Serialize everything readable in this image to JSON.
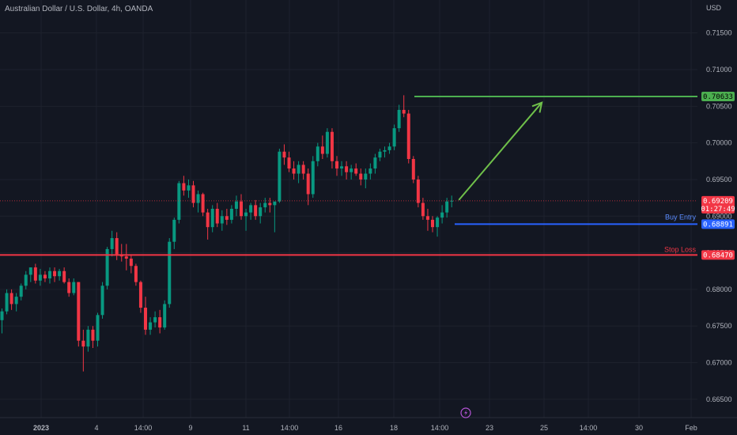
{
  "chart_data": {
    "type": "candlestick",
    "title": "Australian Dollar / U.S. Dollar, 4h, OANDA",
    "currency_label": "USD",
    "ylim": [
      0.6625,
      0.7195
    ],
    "y_ticks": [
      "0.71500",
      "0.71000",
      "0.70500",
      "0.70000",
      "0.69500",
      "0.69000",
      "0.68500",
      "0.68000",
      "0.67500",
      "0.67000",
      "0.66500"
    ],
    "x_ticks": [
      "2023",
      "4",
      "14:00",
      "9",
      "11",
      "14:00",
      "16",
      "18",
      "14:00",
      "23",
      "25",
      "14:00",
      "30",
      "Feb"
    ],
    "grid": true,
    "colors": {
      "background": "#131722",
      "up": "#089981",
      "down": "#f23645",
      "grid": "#1e222d",
      "axis_text": "#b2b5be"
    },
    "candles": [
      [
        0.6758,
        0.6774,
        0.674,
        0.677
      ],
      [
        0.677,
        0.68,
        0.6766,
        0.6795
      ],
      [
        0.6795,
        0.68,
        0.6772,
        0.678
      ],
      [
        0.678,
        0.6795,
        0.677,
        0.679
      ],
      [
        0.679,
        0.6808,
        0.6785,
        0.6805
      ],
      [
        0.6805,
        0.6825,
        0.68,
        0.682
      ],
      [
        0.682,
        0.683,
        0.681,
        0.683
      ],
      [
        0.683,
        0.6835,
        0.6808,
        0.6812
      ],
      [
        0.6812,
        0.6828,
        0.6805,
        0.682
      ],
      [
        0.682,
        0.6825,
        0.681,
        0.6815
      ],
      [
        0.6815,
        0.683,
        0.6808,
        0.6825
      ],
      [
        0.6825,
        0.683,
        0.681,
        0.6818
      ],
      [
        0.6818,
        0.6828,
        0.6812,
        0.6825
      ],
      [
        0.6825,
        0.683,
        0.6808,
        0.681
      ],
      [
        0.681,
        0.6815,
        0.679,
        0.6795
      ],
      [
        0.6795,
        0.6815,
        0.6792,
        0.681
      ],
      [
        0.681,
        0.681,
        0.6722,
        0.673
      ],
      [
        0.673,
        0.6745,
        0.6688,
        0.6722
      ],
      [
        0.6722,
        0.675,
        0.6715,
        0.6745
      ],
      [
        0.6745,
        0.675,
        0.672,
        0.673
      ],
      [
        0.673,
        0.6768,
        0.6722,
        0.6765
      ],
      [
        0.6765,
        0.681,
        0.676,
        0.6805
      ],
      [
        0.6805,
        0.6858,
        0.68,
        0.6855
      ],
      [
        0.6855,
        0.688,
        0.6845,
        0.687
      ],
      [
        0.687,
        0.6878,
        0.684,
        0.6848
      ],
      [
        0.6848,
        0.6862,
        0.6838,
        0.6845
      ],
      [
        0.6845,
        0.6862,
        0.6826,
        0.6842
      ],
      [
        0.6842,
        0.6848,
        0.6822,
        0.6832
      ],
      [
        0.6832,
        0.6835,
        0.6805,
        0.681
      ],
      [
        0.681,
        0.6812,
        0.6768,
        0.6775
      ],
      [
        0.6775,
        0.679,
        0.6738,
        0.6745
      ],
      [
        0.6745,
        0.6762,
        0.6738,
        0.6755
      ],
      [
        0.6755,
        0.677,
        0.6748,
        0.6762
      ],
      [
        0.6762,
        0.6772,
        0.674,
        0.6748
      ],
      [
        0.6748,
        0.6785,
        0.6745,
        0.678
      ],
      [
        0.678,
        0.687,
        0.6775,
        0.6865
      ],
      [
        0.6865,
        0.6898,
        0.6855,
        0.6895
      ],
      [
        0.6895,
        0.6948,
        0.689,
        0.6945
      ],
      [
        0.6945,
        0.6955,
        0.6928,
        0.6935
      ],
      [
        0.6935,
        0.695,
        0.6925,
        0.6942
      ],
      [
        0.6942,
        0.6948,
        0.6912,
        0.6918
      ],
      [
        0.6918,
        0.6935,
        0.6905,
        0.693
      ],
      [
        0.693,
        0.6932,
        0.69,
        0.6905
      ],
      [
        0.6905,
        0.691,
        0.6868,
        0.6885
      ],
      [
        0.6885,
        0.6915,
        0.6878,
        0.691
      ],
      [
        0.691,
        0.6918,
        0.6885,
        0.689
      ],
      [
        0.689,
        0.6908,
        0.688,
        0.69
      ],
      [
        0.69,
        0.691,
        0.6888,
        0.6895
      ],
      [
        0.6895,
        0.6915,
        0.689,
        0.691
      ],
      [
        0.691,
        0.6928,
        0.69,
        0.692
      ],
      [
        0.692,
        0.693,
        0.6895,
        0.69
      ],
      [
        0.69,
        0.691,
        0.688,
        0.6905
      ],
      [
        0.6905,
        0.6918,
        0.6895,
        0.6915
      ],
      [
        0.6915,
        0.6922,
        0.6895,
        0.69
      ],
      [
        0.69,
        0.6918,
        0.689,
        0.6912
      ],
      [
        0.6912,
        0.6925,
        0.6905,
        0.6918
      ],
      [
        0.6918,
        0.6925,
        0.6905,
        0.6915
      ],
      [
        0.6915,
        0.6918,
        0.6878,
        0.692
      ],
      [
        0.692,
        0.6992,
        0.6918,
        0.6988
      ],
      [
        0.6988,
        0.6998,
        0.697,
        0.698
      ],
      [
        0.698,
        0.6988,
        0.696,
        0.6965
      ],
      [
        0.6965,
        0.6975,
        0.695,
        0.6958
      ],
      [
        0.6958,
        0.6975,
        0.6945,
        0.697
      ],
      [
        0.697,
        0.6975,
        0.695,
        0.6958
      ],
      [
        0.6958,
        0.6965,
        0.6915,
        0.693
      ],
      [
        0.693,
        0.6982,
        0.6925,
        0.6975
      ],
      [
        0.6975,
        0.7,
        0.6968,
        0.6995
      ],
      [
        0.6995,
        0.701,
        0.6978,
        0.6985
      ],
      [
        0.6985,
        0.702,
        0.698,
        0.7015
      ],
      [
        0.7015,
        0.702,
        0.6965,
        0.6975
      ],
      [
        0.6975,
        0.6982,
        0.6955,
        0.6965
      ],
      [
        0.6965,
        0.6975,
        0.6955,
        0.6968
      ],
      [
        0.6968,
        0.6975,
        0.695,
        0.696
      ],
      [
        0.696,
        0.697,
        0.695,
        0.6965
      ],
      [
        0.6965,
        0.6972,
        0.6955,
        0.6958
      ],
      [
        0.6958,
        0.6965,
        0.6942,
        0.695
      ],
      [
        0.695,
        0.6965,
        0.6938,
        0.6958
      ],
      [
        0.6958,
        0.6972,
        0.695,
        0.6965
      ],
      [
        0.6965,
        0.6985,
        0.6958,
        0.698
      ],
      [
        0.698,
        0.6992,
        0.6975,
        0.6988
      ],
      [
        0.6988,
        0.6995,
        0.698,
        0.699
      ],
      [
        0.699,
        0.7,
        0.6985,
        0.6995
      ],
      [
        0.6995,
        0.7025,
        0.699,
        0.702
      ],
      [
        0.702,
        0.7052,
        0.7015,
        0.7045
      ],
      [
        0.7045,
        0.7065,
        0.7035,
        0.704
      ],
      [
        0.704,
        0.7045,
        0.6972,
        0.6978
      ],
      [
        0.6978,
        0.6982,
        0.6945,
        0.695
      ],
      [
        0.695,
        0.6955,
        0.6912,
        0.6918
      ],
      [
        0.6918,
        0.6925,
        0.6895,
        0.69
      ],
      [
        0.69,
        0.691,
        0.688,
        0.6895
      ],
      [
        0.6895,
        0.69,
        0.6878,
        0.6885
      ],
      [
        0.6885,
        0.69,
        0.6872,
        0.6898
      ],
      [
        0.6898,
        0.6915,
        0.689,
        0.6905
      ],
      [
        0.6905,
        0.6925,
        0.6898,
        0.692
      ],
      [
        0.692,
        0.6928,
        0.6912,
        0.6921
      ]
    ],
    "levels": {
      "target": {
        "value": 0.70633,
        "label": "0.70633",
        "color": "#4caf50"
      },
      "current": {
        "value": 0.69209,
        "label": "0.69209",
        "countdown": "01:27:49",
        "color": "#f23645"
      },
      "buy_entry": {
        "value": 0.68891,
        "label": "0.68891",
        "name": "Buy Entry",
        "color": "#2962ff"
      },
      "stop_loss": {
        "value": 0.6847,
        "label": "0.68470",
        "name": "Stop Loss",
        "color": "#f23645"
      }
    },
    "arrow": {
      "from_index": 95,
      "from_value": 0.6922,
      "to_index": 113,
      "to_value": 0.7055,
      "color": "#6fc04a"
    }
  }
}
